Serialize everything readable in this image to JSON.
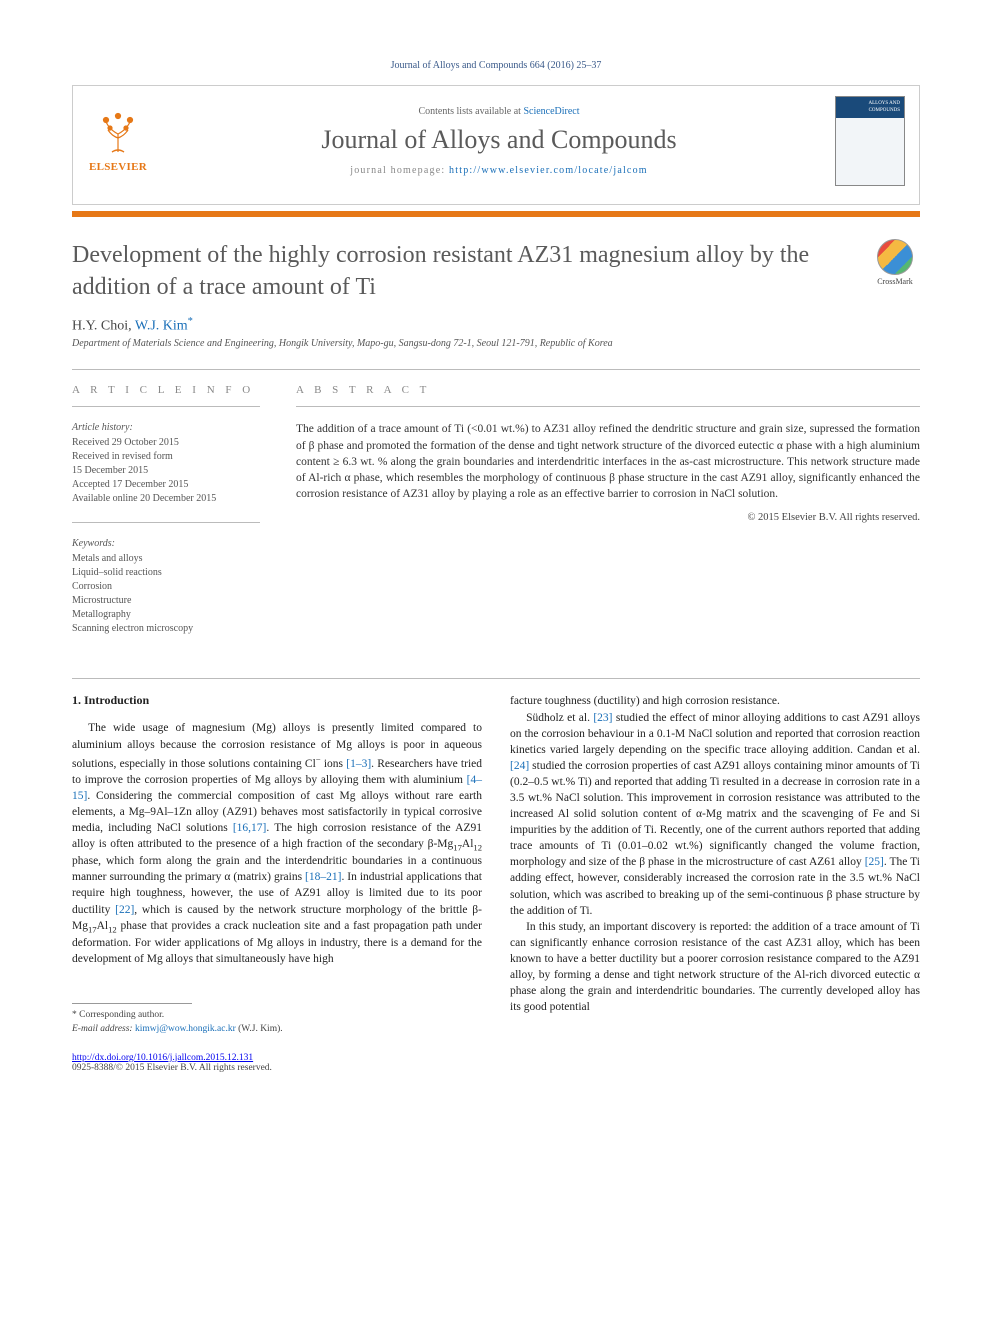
{
  "header": {
    "citation": "Journal of Alloys and Compounds 664 (2016) 25–37",
    "contents_prefix": "Contents lists available at ",
    "contents_link": "ScienceDirect",
    "journal_title": "Journal of Alloys and Compounds",
    "homepage_prefix": "journal homepage: ",
    "homepage_url": "http://www.elsevier.com/locate/jalcom",
    "publisher_name": "ELSEVIER",
    "cover_text": "ALLOYS AND COMPOUNDS",
    "crossmark_label": "CrossMark"
  },
  "article": {
    "title": "Development of the highly corrosion resistant AZ31 magnesium alloy by the addition of a trace amount of Ti",
    "authors_prefix": "H.Y. Choi, ",
    "author_corresponding": "W.J. Kim",
    "affiliation": "Department of Materials Science and Engineering, Hongik University, Mapo-gu, Sangsu-dong 72-1, Seoul 121-791, Republic of Korea"
  },
  "info": {
    "label": "A R T I C L E   I N F O",
    "history_heading": "Article history:",
    "history_lines": [
      "Received 29 October 2015",
      "Received in revised form",
      "15 December 2015",
      "Accepted 17 December 2015",
      "Available online 20 December 2015"
    ],
    "keywords_heading": "Keywords:",
    "keywords": [
      "Metals and alloys",
      "Liquid–solid reactions",
      "Corrosion",
      "Microstructure",
      "Metallography",
      "Scanning electron microscopy"
    ]
  },
  "abstract": {
    "label": "A B S T R A C T",
    "text": "The addition of a trace amount of Ti (<0.01 wt.%) to AZ31 alloy refined the dendritic structure and grain size, supressed the formation of β phase and promoted the formation of the dense and tight network structure of the divorced eutectic α phase with a high aluminium content ≥ 6.3 wt. % along the grain boundaries and interdendritic interfaces in the as-cast microstructure. This network structure made of Al-rich α phase, which resembles the morphology of continuous β phase structure in the cast AZ91 alloy, significantly enhanced the corrosion resistance of AZ31 alloy by playing a role as an effective barrier to corrosion in NaCl solution.",
    "copyright": "© 2015 Elsevier B.V. All rights reserved."
  },
  "body": {
    "section_heading": "1. Introduction",
    "col1_paras": [
      "The wide usage of magnesium (Mg) alloys is presently limited compared to aluminium alloys because the corrosion resistance of Mg alloys is poor in aqueous solutions, especially in those solutions containing Cl⁻ ions [1–3]. Researchers have tried to improve the corrosion properties of Mg alloys by alloying them with aluminium [4–15]. Considering the commercial composition of cast Mg alloys without rare earth elements, a Mg–9Al–1Zn alloy (AZ91) behaves most satisfactorily in typical corrosive media, including NaCl solutions [16,17]. The high corrosion resistance of the AZ91 alloy is often attributed to the presence of a high fraction of the secondary β-Mg₁₇Al₁₂ phase, which form along the grain and the interdendritic boundaries in a continuous manner surrounding the primary α (matrix) grains [18–21]. In industrial applications that require high toughness, however, the use of AZ91 alloy is limited due to its poor ductility [22], which is caused by the network structure morphology of the brittle β-Mg₁₇Al₁₂ phase that provides a crack nucleation site and a fast propagation path under deformation. For wider applications of Mg alloys in industry, there is a demand for the development of Mg alloys that simultaneously have high"
    ],
    "col2_paras": [
      "facture toughness (ductility) and high corrosion resistance.",
      "Südholz et al. [23] studied the effect of minor alloying additions to cast AZ91 alloys on the corrosion behaviour in a 0.1-M NaCl solution and reported that corrosion reaction kinetics varied largely depending on the specific trace alloying addition. Candan et al. [24] studied the corrosion properties of cast AZ91 alloys containing minor amounts of Ti (0.2–0.5 wt.% Ti) and reported that adding Ti resulted in a decrease in corrosion rate in a 3.5 wt.% NaCl solution. This improvement in corrosion resistance was attributed to the increased Al solid solution content of α-Mg matrix and the scavenging of Fe and Si impurities by the addition of Ti. Recently, one of the current authors reported that adding trace amounts of Ti (0.01–0.02 wt.%) significantly changed the volume fraction, morphology and size of the β phase in the microstructure of cast AZ61 alloy [25]. The Ti adding effect, however, considerably increased the corrosion rate in the 3.5 wt.% NaCl solution, which was ascribed to breaking up of the semi-continuous β phase structure by the addition of Ti.",
      "In this study, an important discovery is reported: the addition of a trace amount of Ti can significantly enhance corrosion resistance of the cast AZ31 alloy, which has been known to have a better ductility but a poorer corrosion resistance compared to the AZ91 alloy, by forming a dense and tight network structure of the Al-rich divorced eutectic α phase along the grain and interdendritic boundaries. The currently developed alloy has its good potential"
    ]
  },
  "footer": {
    "corresponding_label": "* Corresponding author.",
    "email_label": "E-mail address: ",
    "email": "kimwj@wow.hongik.ac.kr",
    "email_suffix": " (W.J. Kim).",
    "doi": "http://dx.doi.org/10.1016/j.jallcom.2015.12.131",
    "issn_line": "0925-8388/© 2015 Elsevier B.V. All rights reserved."
  },
  "colors": {
    "accent_orange": "#e67817",
    "link_blue": "#1a6fb8",
    "header_gray": "#5a5a5a",
    "text": "#333333"
  }
}
